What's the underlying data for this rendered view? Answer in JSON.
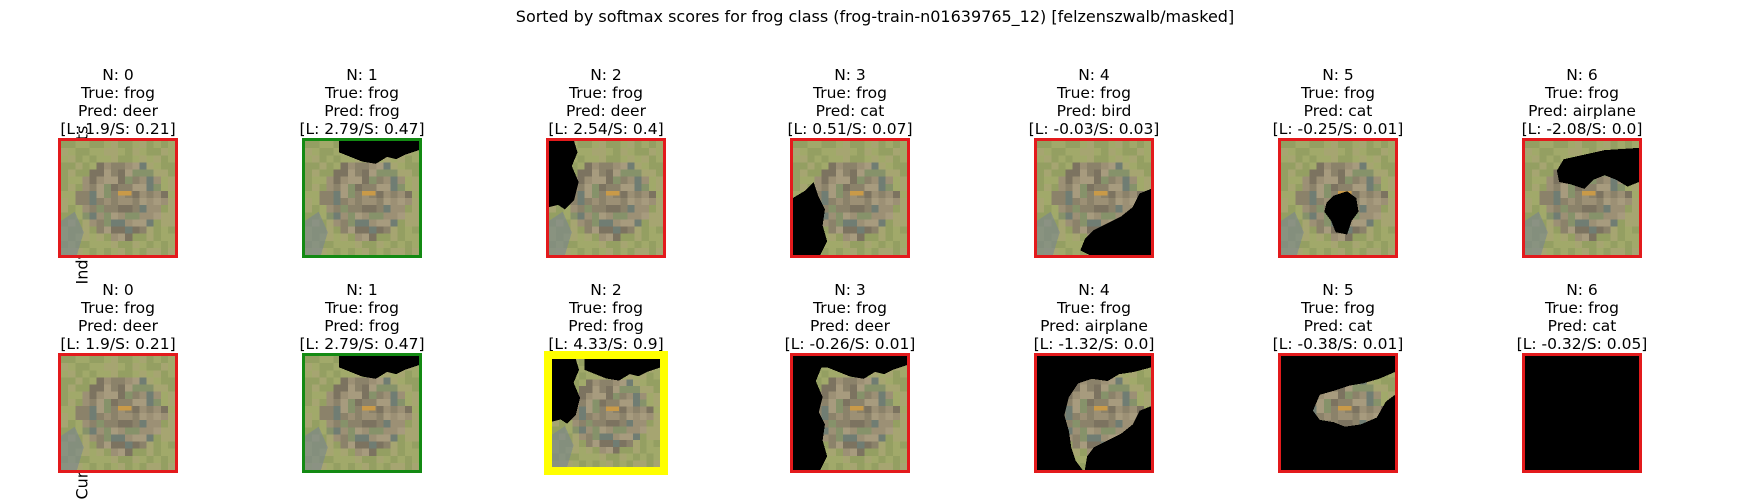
{
  "title": "Sorted by softmax scores for frog class (frog-train-n01639765_12) [felzenszwalb/masked]",
  "row_labels": [
    "Indvidual Segments",
    "Cumulative Image"
  ],
  "colors": {
    "red": "#e31a1c",
    "green": "#138a13",
    "yellow": "#ffff00"
  },
  "rows": [
    {
      "panels": [
        {
          "n": "N: 0",
          "true": "True: frog",
          "pred": "Pred: deer",
          "score": "[L: 1.9/S: 0.21]",
          "border": "red",
          "mask": "none"
        },
        {
          "n": "N: 1",
          "true": "True: frog",
          "pred": "Pred: frog",
          "score": "[L: 2.79/S: 0.47]",
          "border": "green",
          "mask": "top-right"
        },
        {
          "n": "N: 2",
          "true": "True: frog",
          "pred": "Pred: deer",
          "score": "[L: 2.54/S: 0.4]",
          "border": "red",
          "mask": "left"
        },
        {
          "n": "N: 3",
          "true": "True: frog",
          "pred": "Pred: cat",
          "score": "[L: 0.51/S: 0.07]",
          "border": "red",
          "mask": "bottom-left"
        },
        {
          "n": "N: 4",
          "true": "True: frog",
          "pred": "Pred: bird",
          "score": "[L: -0.03/S: 0.03]",
          "border": "red",
          "mask": "bottom-right"
        },
        {
          "n": "N: 5",
          "true": "True: frog",
          "pred": "Pred: cat",
          "score": "[L: -0.25/S: 0.01]",
          "border": "red",
          "mask": "center"
        },
        {
          "n": "N: 6",
          "true": "True: frog",
          "pred": "Pred: airplane",
          "score": "[L: -2.08/S: 0.0]",
          "border": "red",
          "mask": "upper-center"
        }
      ]
    },
    {
      "panels": [
        {
          "n": "N: 0",
          "true": "True: frog",
          "pred": "Pred: deer",
          "score": "[L: 1.9/S: 0.21]",
          "border": "red",
          "mask": "none"
        },
        {
          "n": "N: 1",
          "true": "True: frog",
          "pred": "Pred: frog",
          "score": "[L: 2.79/S: 0.47]",
          "border": "green",
          "mask": "top-right"
        },
        {
          "n": "N: 2",
          "true": "True: frog",
          "pred": "Pred: frog",
          "score": "[L: 4.33/S: 0.9]",
          "border": "yellow",
          "mask": "cum-2"
        },
        {
          "n": "N: 3",
          "true": "True: frog",
          "pred": "Pred: deer",
          "score": "[L: -0.26/S: 0.01]",
          "border": "red",
          "mask": "cum-3"
        },
        {
          "n": "N: 4",
          "true": "True: frog",
          "pred": "Pred: airplane",
          "score": "[L: -1.32/S: 0.0]",
          "border": "red",
          "mask": "cum-4"
        },
        {
          "n": "N: 5",
          "true": "True: frog",
          "pred": "Pred: cat",
          "score": "[L: -0.38/S: 0.01]",
          "border": "red",
          "mask": "cum-5"
        },
        {
          "n": "N: 6",
          "true": "True: frog",
          "pred": "Pred: cat",
          "score": "[L: -0.32/S: 0.05]",
          "border": "red",
          "mask": "full"
        }
      ]
    }
  ]
}
